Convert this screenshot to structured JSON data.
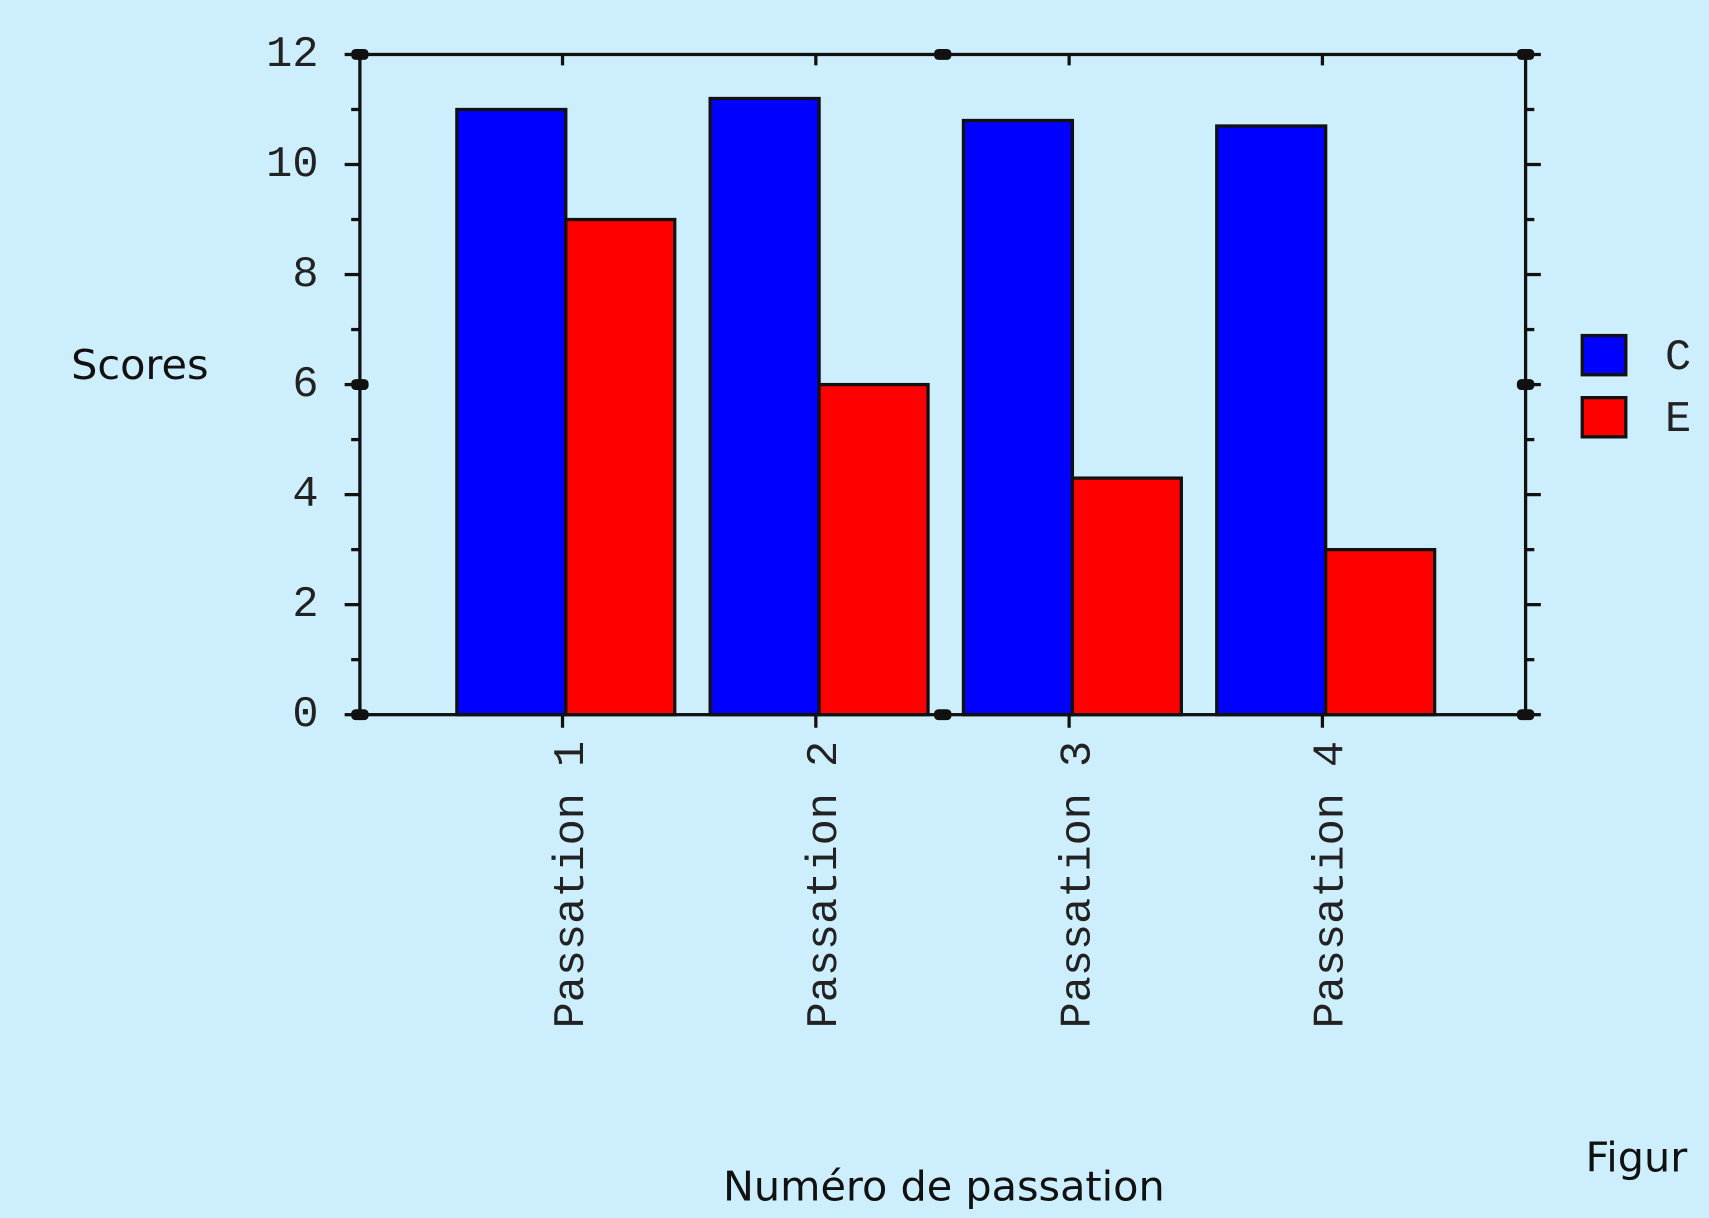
{
  "chart_data": {
    "type": "bar",
    "x_label": "Numéro de passation",
    "y_label": "Scores",
    "categories": [
      "Passation 1",
      "Passation 2",
      "Passation 3",
      "Passation 4"
    ],
    "series": [
      {
        "name": "C",
        "color": "#0000ff",
        "values": [
          11,
          11.2,
          10.8,
          10.7
        ]
      },
      {
        "name": "E",
        "color": "#ff0000",
        "values": [
          9,
          6,
          4.3,
          3
        ]
      }
    ],
    "ylim": [
      0,
      12
    ],
    "yticks": [
      0,
      2,
      4,
      6,
      8,
      10,
      12
    ],
    "legend": "right",
    "caption": "Figur"
  }
}
